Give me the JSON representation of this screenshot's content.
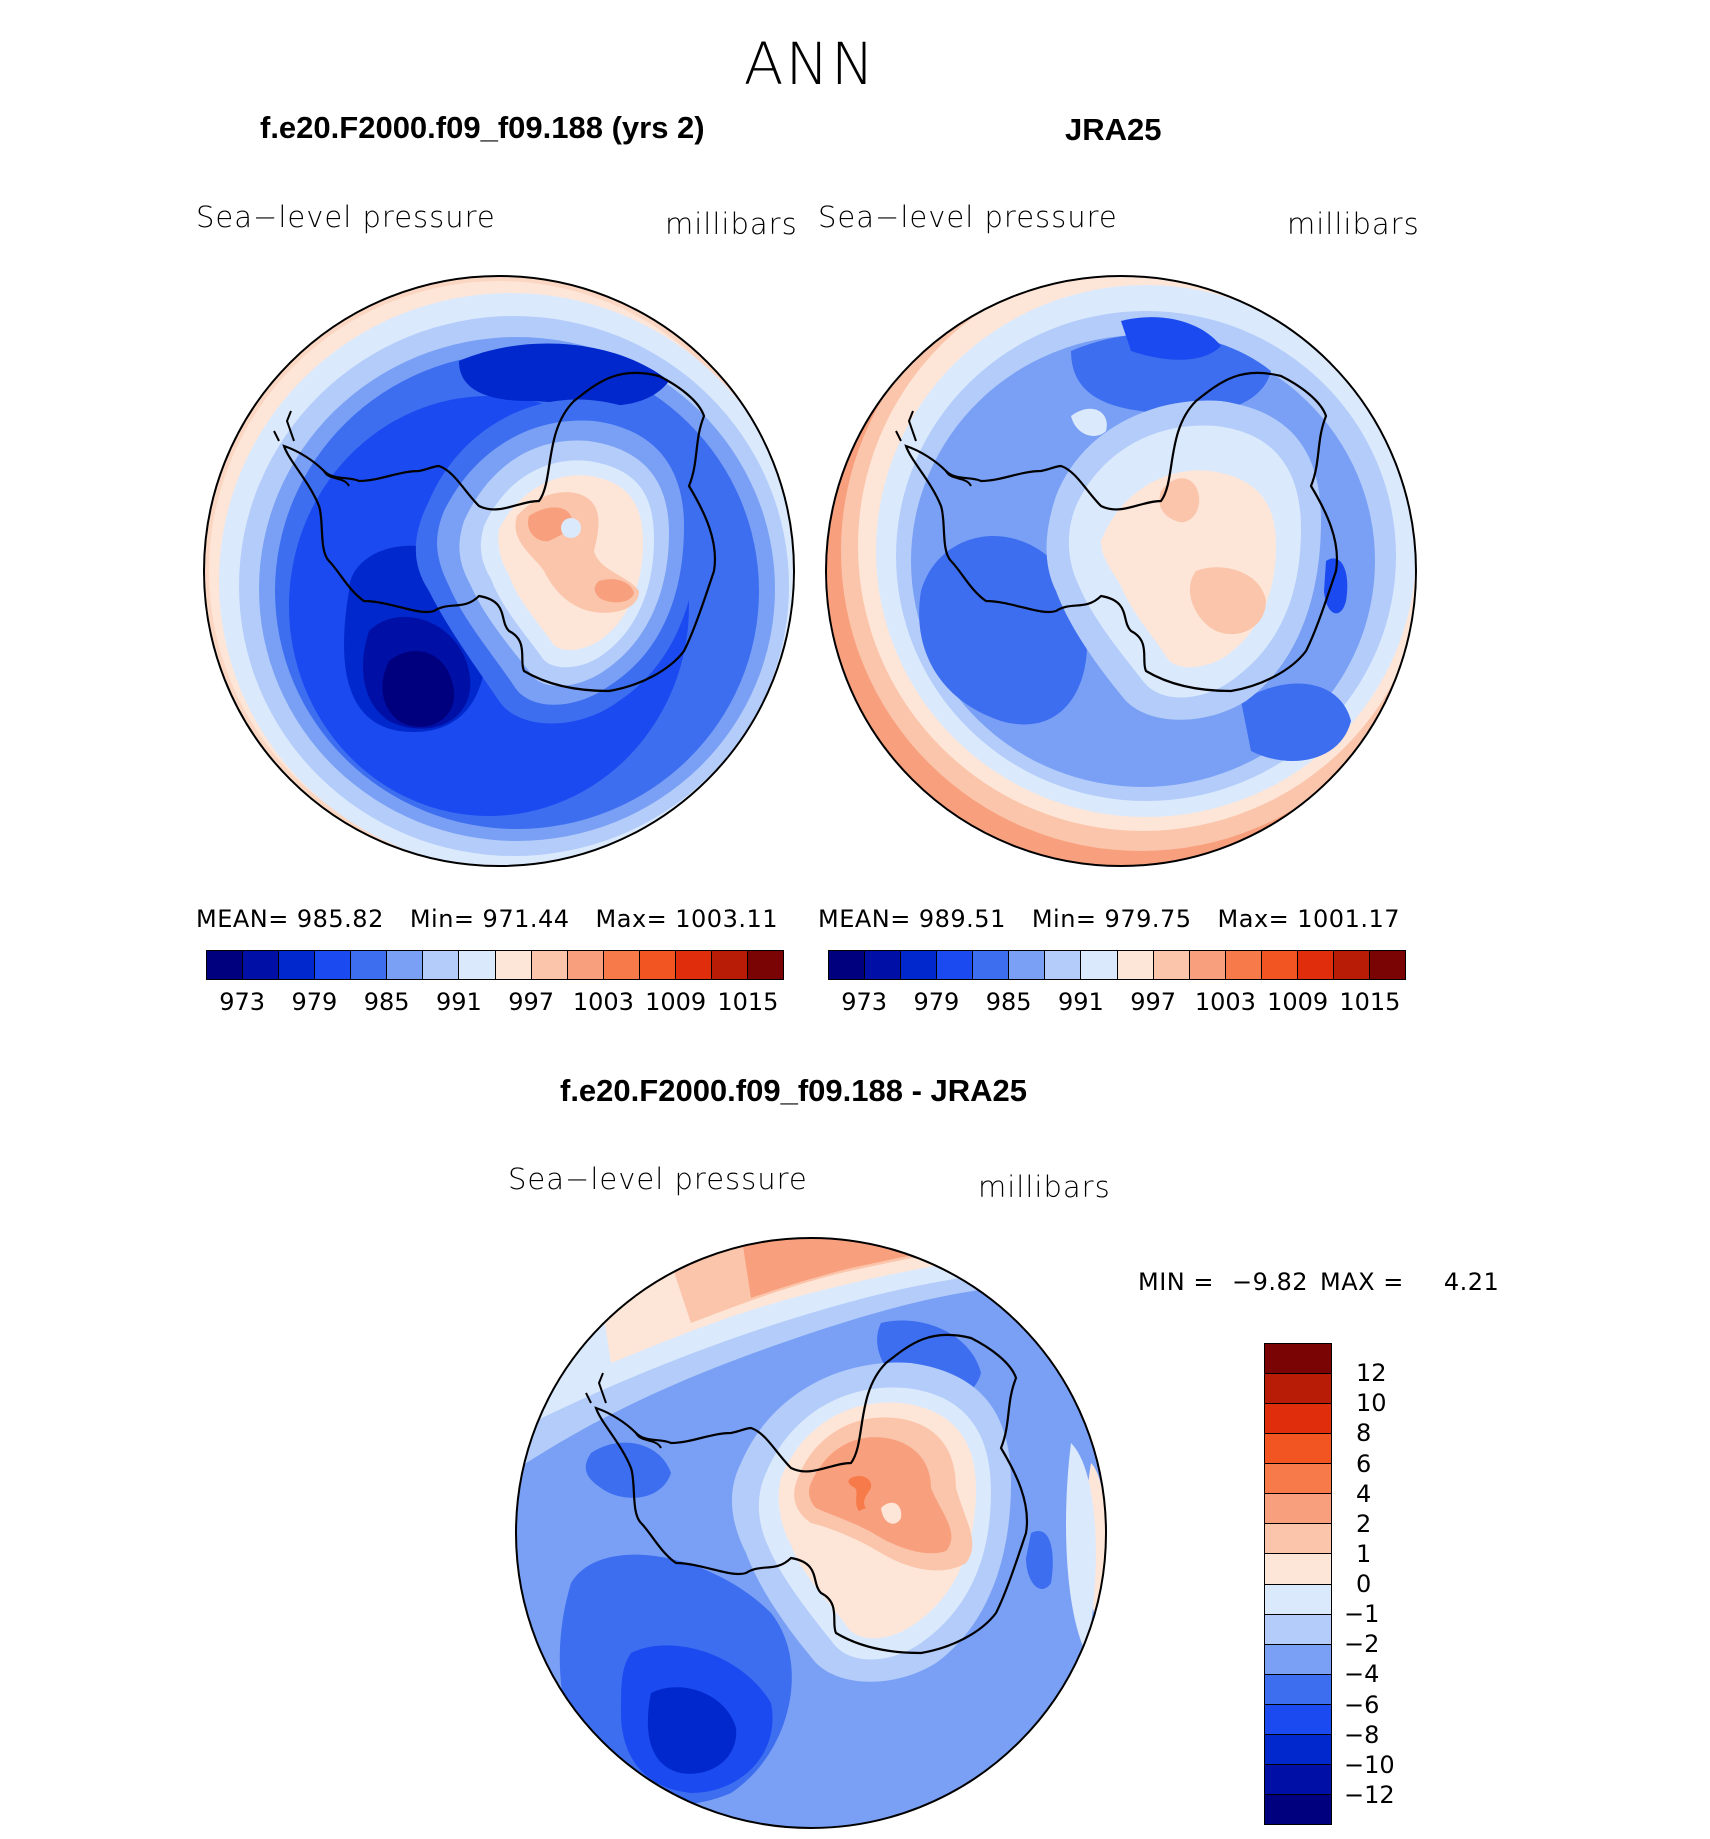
{
  "figure_title": "ANN",
  "panels": [
    {
      "case_title": "f.e20.F2000.f09_f09.188 (yrs 2)",
      "variable": "Sea−level pressure",
      "units": "millibars",
      "stats": {
        "mean_label": "MEAN=",
        "mean": "985.82",
        "min_label": "Min=",
        "min": "971.44",
        "max_label": "Max=",
        "max": "1003.11"
      }
    },
    {
      "case_title": "JRA25",
      "variable": "Sea−level pressure",
      "units": "millibars",
      "stats": {
        "mean_label": "MEAN=",
        "mean": "989.51",
        "min_label": "Min=",
        "min": "979.75",
        "max_label": "Max=",
        "max": "1001.17"
      }
    },
    {
      "case_title": "f.e20.F2000.f09_f09.188 - JRA25",
      "variable": "Sea−level pressure",
      "units": "millibars",
      "stats": {
        "min_label": "MIN =",
        "min": "−9.82",
        "max_label": "MAX =",
        "max": "4.21"
      }
    }
  ],
  "chart_data": [
    {
      "type": "heatmap",
      "title": "f.e20.F2000.f09_f09.188 (yrs 2)",
      "projection": "south polar stereographic",
      "variable": "Sea-level pressure",
      "units": "millibars",
      "mean": 985.82,
      "min": 971.44,
      "max": 1003.11,
      "contour_levels": [
        973,
        976,
        979,
        982,
        985,
        988,
        991,
        994,
        997,
        1000,
        1003,
        1006,
        1009,
        1012,
        1015
      ],
      "tick_labels": [
        "973",
        "979",
        "985",
        "991",
        "997",
        "1003",
        "1009",
        "1015"
      ],
      "colors": [
        "#00007f",
        "#0010a6",
        "#0028cc",
        "#1a4af0",
        "#3d6ef0",
        "#7aa0f5",
        "#b3ccfa",
        "#dbe9fc",
        "#fde6d8",
        "#fbc5ab",
        "#f8a07e",
        "#f77a4a",
        "#f25422",
        "#e02d0b",
        "#b81c07",
        "#7a0403"
      ]
    },
    {
      "type": "heatmap",
      "title": "JRA25",
      "projection": "south polar stereographic",
      "variable": "Sea-level pressure",
      "units": "millibars",
      "mean": 989.51,
      "min": 979.75,
      "max": 1001.17,
      "contour_levels": [
        973,
        976,
        979,
        982,
        985,
        988,
        991,
        994,
        997,
        1000,
        1003,
        1006,
        1009,
        1012,
        1015
      ],
      "tick_labels": [
        "973",
        "979",
        "985",
        "991",
        "997",
        "1003",
        "1009",
        "1015"
      ],
      "colors": [
        "#00007f",
        "#0010a6",
        "#0028cc",
        "#1a4af0",
        "#3d6ef0",
        "#7aa0f5",
        "#b3ccfa",
        "#dbe9fc",
        "#fde6d8",
        "#fbc5ab",
        "#f8a07e",
        "#f77a4a",
        "#f25422",
        "#e02d0b",
        "#b81c07",
        "#7a0403"
      ]
    },
    {
      "type": "heatmap",
      "title": "f.e20.F2000.f09_f09.188 - JRA25",
      "projection": "south polar stereographic",
      "variable": "Sea-level pressure",
      "units": "millibars",
      "min": -9.82,
      "max": 4.21,
      "contour_levels": [
        12,
        10,
        8,
        6,
        4,
        2,
        1,
        0,
        -1,
        -2,
        -4,
        -6,
        -8,
        -10,
        -12
      ],
      "tick_labels": [
        "12",
        "10",
        "8",
        "6",
        "4",
        "2",
        "1",
        "0",
        "−1",
        "−2",
        "−4",
        "−6",
        "−8",
        "−10",
        "−12"
      ],
      "colors": [
        "#7a0403",
        "#b81c07",
        "#e02d0b",
        "#f25422",
        "#f77a4a",
        "#f8a07e",
        "#fbc5ab",
        "#fde6d8",
        "#dbe9fc",
        "#b3ccfa",
        "#7aa0f5",
        "#3d6ef0",
        "#1a4af0",
        "#0028cc",
        "#0010a6",
        "#00007f"
      ]
    }
  ]
}
